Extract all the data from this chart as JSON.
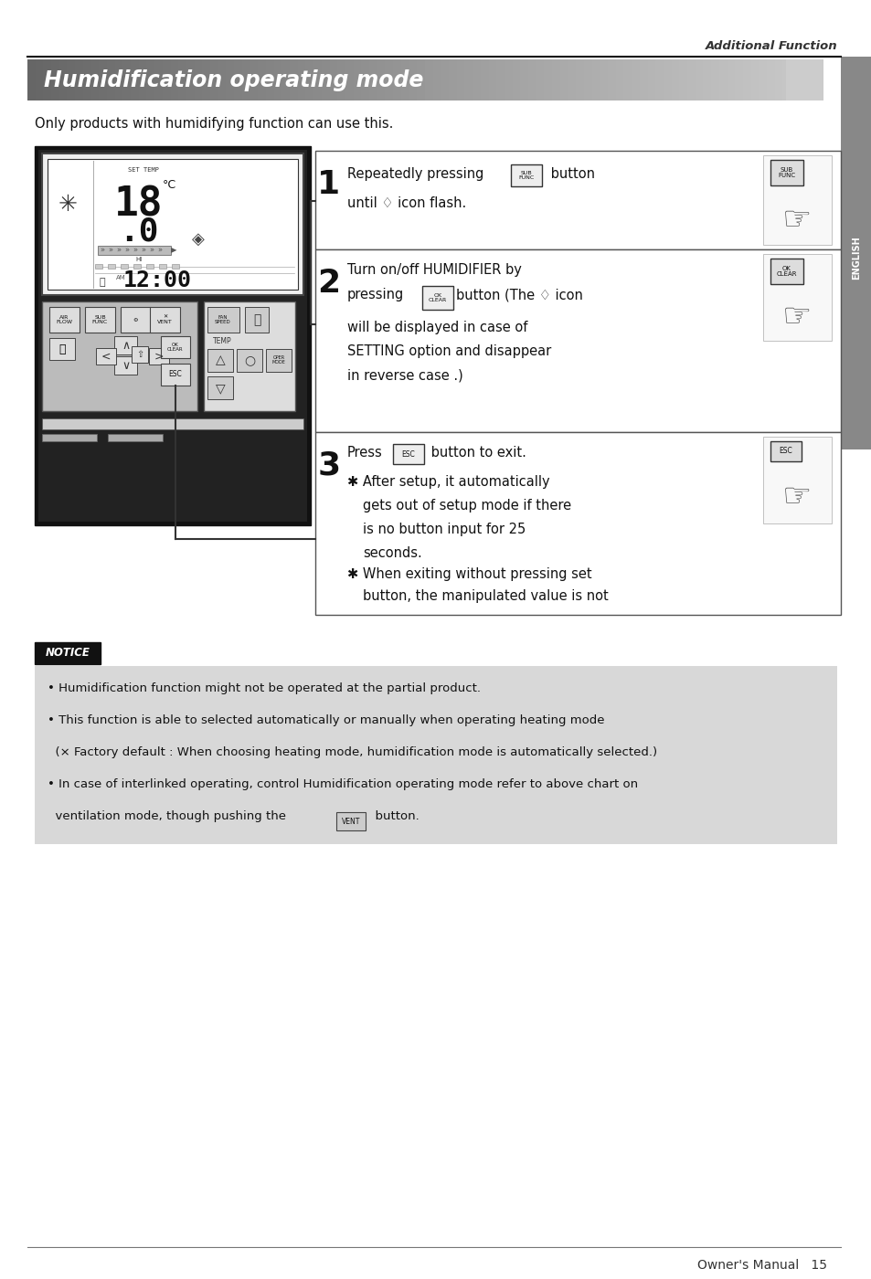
{
  "page_title": "Additional Function",
  "section_title": "Humidification operating mode",
  "subtitle": "Only products with humidifying function can use this.",
  "sidebar_text": "ENGLISH",
  "footer": "Owner's Manual   15",
  "bg_color": "#ffffff",
  "notice_lines": [
    "• Humidification function might not be operated at the partial product.",
    "• This function is able to selected automatically or manually when operating heating mode",
    "  (× Factory default : When choosing heating mode, humidification mode is automatically selected.)",
    "• In case of interlinked operating, control Humidification operating mode refer to above chart on",
    "  ventilation mode, though pushing the        button."
  ]
}
